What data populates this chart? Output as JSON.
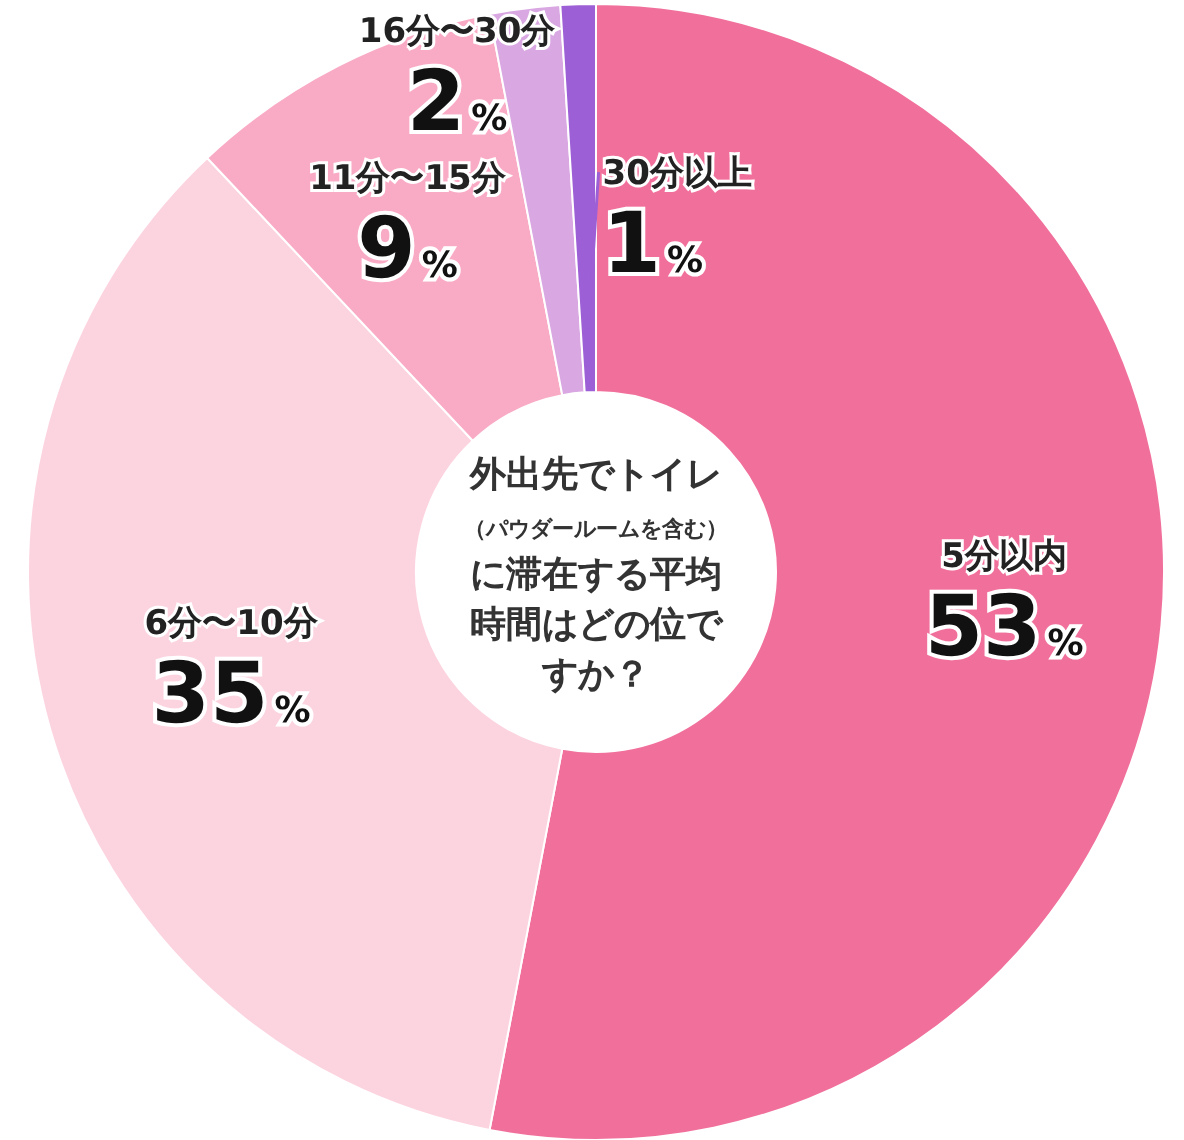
{
  "chart_data": {
    "type": "donut",
    "title": "外出先でトイレ（パウダールームを含む）に滞在する平均時間はどの位ですか？",
    "categories": [
      "5分以内",
      "6分〜10分",
      "11分〜15分",
      "16分〜30分",
      "30分以上"
    ],
    "values": [
      53,
      35,
      9,
      2,
      1
    ],
    "colors": [
      "#f1709b",
      "#fcd4e0",
      "#f9aac4",
      "#d9a7e2",
      "#9d5fd5"
    ],
    "value_labels": [
      "53%",
      "35%",
      "9%",
      "2%",
      "1%"
    ]
  }
}
